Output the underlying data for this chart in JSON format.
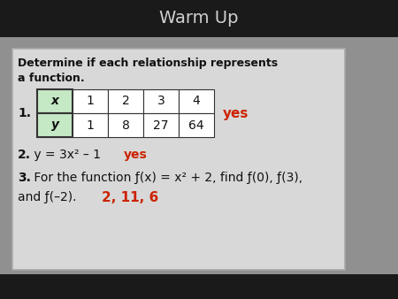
{
  "title": "Warm Up",
  "title_color": "#d0d0d0",
  "title_bg": "#1a1a1a",
  "title_bar_height": 42,
  "outer_bg": "#909090",
  "card_bg": "#cccccc",
  "card_border": "#bbbbbb",
  "bold_text_line1": "Determine if each relationship represents",
  "bold_text_line2": "a function.",
  "item1_label": "1.",
  "table_headers": [
    "x",
    "1",
    "2",
    "3",
    "4"
  ],
  "table_row2": [
    "y",
    "1",
    "8",
    "27",
    "64"
  ],
  "header_cell_bg": "#c5e8c5",
  "header_cell_border": "#4caf50",
  "cell_bg": "#ffffff",
  "yes_color": "#cc2200",
  "item2_bold": "2.",
  "item2_normal": " y = 3x² – 1",
  "item2_yes": "yes",
  "item3_bold": "3.",
  "item3_normal": " For the function ƒ(x) = x² + 2, find ƒ(0), ƒ(3),",
  "item3_line2": "and ƒ(–2).",
  "item3_answer": "2, 11, 6",
  "fig_bg": "#888888",
  "figsize": [
    4.5,
    3.38
  ],
  "dpi": 100
}
